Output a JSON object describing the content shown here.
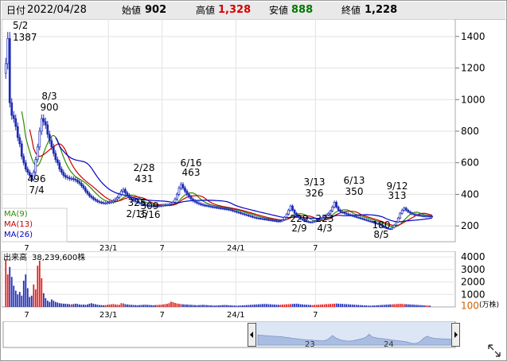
{
  "header": {
    "date_label": "日付",
    "date_value": "2022/04/28",
    "open_label": "始値",
    "open_value": "902",
    "high_label": "高値",
    "high_value": "1,328",
    "low_label": "安値",
    "low_value": "888",
    "close_label": "終値",
    "close_value": "1,228",
    "high_color": "#d40000",
    "low_color": "#007a00"
  },
  "chart_data": [
    {
      "type": "candlestick",
      "title": "",
      "y_ticks": [
        200,
        400,
        600,
        800,
        1000,
        1200,
        1400
      ],
      "ylim": [
        100,
        1510
      ],
      "x_ticks": [
        "7",
        "23/1",
        "7",
        "24/1",
        "7"
      ],
      "moving_averages": [
        {
          "name": "MA(9)",
          "color": "#2e8b00"
        },
        {
          "name": "MA(13)",
          "color": "#c80000"
        },
        {
          "name": "MA(26)",
          "color": "#0000c8"
        }
      ],
      "annotations": [
        {
          "date": "5/2",
          "value": "1387"
        },
        {
          "date": "8/3",
          "value": "900"
        },
        {
          "date": "7/4",
          "value": "496"
        },
        {
          "date": "2/28",
          "value": "431"
        },
        {
          "date": "2/15",
          "value": "325"
        },
        {
          "date": "3/16",
          "value": "309"
        },
        {
          "date": "6/16",
          "value": "463"
        },
        {
          "date": "3/13",
          "value": "326"
        },
        {
          "date": "6/13",
          "value": "350"
        },
        {
          "date": "9/12",
          "value": "313"
        },
        {
          "date": "2/9",
          "value": "229"
        },
        {
          "date": "4/3",
          "value": "223"
        },
        {
          "date": "8/5",
          "value": "180"
        }
      ],
      "series_close": [
        1228,
        1387,
        980,
        900,
        880,
        830,
        760,
        720,
        640,
        600,
        560,
        540,
        520,
        496,
        540,
        620,
        700,
        800,
        880,
        860,
        840,
        780,
        740,
        700,
        660,
        620,
        600,
        560,
        540,
        520,
        510,
        505,
        500,
        500,
        495,
        490,
        480,
        470,
        455,
        440,
        420,
        405,
        390,
        380,
        370,
        362,
        355,
        350,
        348,
        345,
        345,
        348,
        350,
        352,
        360,
        370,
        380,
        400,
        420,
        431,
        410,
        395,
        380,
        370,
        362,
        355,
        350,
        345,
        340,
        336,
        332,
        330,
        328,
        327,
        326,
        325,
        326,
        328,
        330,
        332,
        334,
        335,
        336,
        340,
        350,
        370,
        400,
        440,
        463,
        440,
        420,
        400,
        385,
        370,
        360,
        352,
        346,
        340,
        336,
        332,
        330,
        328,
        325,
        322,
        320,
        318,
        316,
        314,
        312,
        310,
        308,
        306,
        304,
        300,
        296,
        292,
        288,
        284,
        280,
        276,
        272,
        268,
        264,
        260,
        256,
        252,
        250,
        248,
        246,
        244,
        242,
        240,
        238,
        236,
        234,
        232,
        230,
        229,
        232,
        240,
        255,
        275,
        300,
        326,
        300,
        280,
        265,
        255,
        245,
        238,
        232,
        228,
        225,
        223,
        226,
        230,
        236,
        242,
        248,
        255,
        262,
        270,
        280,
        295,
        320,
        350,
        320,
        300,
        290,
        285,
        280,
        276,
        272,
        268,
        264,
        260,
        256,
        252,
        248,
        244,
        240,
        236,
        232,
        228,
        224,
        220,
        216,
        212,
        206,
        198,
        190,
        185,
        182,
        180,
        190,
        205,
        225,
        250,
        280,
        300,
        313,
        300,
        290,
        282,
        276,
        272,
        270,
        268,
        266,
        264,
        262,
        262,
        262,
        261,
        260
      ]
    },
    {
      "type": "bar",
      "title": "出来高",
      "value_label": "38,239,600株",
      "unit": "(万株)",
      "y_ticks": [
        "100",
        "1000",
        "2000",
        "3000",
        "4000"
      ],
      "ylim": [
        0,
        4200
      ],
      "x_ticks": [
        "7",
        "23/1",
        "7",
        "24/1",
        "7"
      ],
      "values": [
        3800,
        2600,
        3200,
        2400,
        1700,
        1300,
        1000,
        1200,
        900,
        2100,
        2600,
        1500,
        800,
        900,
        1800,
        1400,
        3300,
        3700,
        2300,
        1100,
        700,
        500,
        400,
        600,
        500,
        400,
        350,
        300,
        280,
        260,
        250,
        240,
        220,
        210,
        230,
        260,
        240,
        200,
        180,
        190,
        170,
        200,
        260,
        300,
        250,
        220,
        180,
        160,
        150,
        140,
        150,
        170,
        190,
        210,
        230,
        200,
        180,
        170,
        300,
        280,
        220,
        200,
        180,
        170,
        160,
        150,
        140,
        150,
        160,
        170,
        180,
        170,
        160,
        150,
        140,
        150,
        160,
        170,
        180,
        200,
        220,
        250,
        300,
        420,
        380,
        320,
        280,
        250,
        230,
        210,
        200,
        190,
        180,
        170,
        160,
        150,
        140,
        150,
        160,
        170,
        160,
        150,
        140,
        130,
        120,
        110,
        120,
        130,
        140,
        150,
        160,
        150,
        140,
        130,
        120,
        110,
        100,
        110,
        120,
        130,
        140,
        150,
        160,
        170,
        180,
        190,
        200,
        210,
        220,
        230,
        240,
        230,
        220,
        210,
        200,
        190,
        180,
        170,
        180,
        190,
        200,
        210,
        220,
        230,
        240,
        250,
        260,
        240,
        220,
        200,
        190,
        180,
        170,
        160,
        150,
        160,
        170,
        180,
        190,
        200,
        210,
        220,
        230,
        240,
        250,
        260,
        270,
        260,
        250,
        240,
        230,
        220,
        210,
        200,
        190,
        180,
        170,
        160,
        150,
        140,
        130,
        120,
        110,
        100,
        110,
        120,
        130,
        140,
        150,
        160,
        170,
        180,
        190,
        200,
        210,
        220,
        230,
        240,
        250,
        240,
        230,
        220,
        210,
        200,
        190,
        180,
        170,
        160,
        150,
        140,
        130,
        120,
        110,
        100
      ]
    }
  ],
  "navigator": {
    "year_labels": [
      "23",
      "24"
    ]
  }
}
